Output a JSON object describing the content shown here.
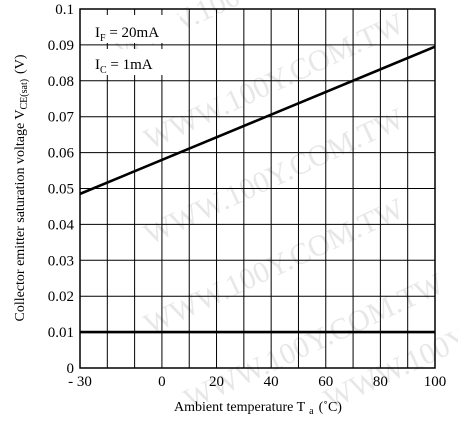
{
  "chart_data": {
    "type": "line",
    "x": [
      -30,
      100
    ],
    "series": [
      {
        "values": [
          0.0485,
          0.0895
        ]
      },
      {
        "values": [
          0.01,
          0.01
        ]
      }
    ],
    "xlim": [
      -30,
      100
    ],
    "ylim": [
      0,
      0.1
    ],
    "x_ticks": [
      -30,
      -20,
      -10,
      0,
      10,
      20,
      30,
      40,
      50,
      60,
      70,
      80,
      90,
      100
    ],
    "x_tick_labels": [
      "- 30",
      "",
      "",
      "0",
      "",
      "20",
      "",
      "40",
      "",
      "60",
      "",
      "80",
      "",
      "100"
    ],
    "y_ticks": [
      0,
      0.01,
      0.02,
      0.03,
      0.04,
      0.05,
      0.06,
      0.07,
      0.08,
      0.09,
      0.1
    ],
    "y_tick_labels": [
      "0",
      "0.01",
      "0.02",
      "0.03",
      "0.04",
      "0.05",
      "0.06",
      "0.07",
      "0.08",
      "0.09",
      "0.1"
    ],
    "grid": true,
    "xlabel": {
      "main": "Ambient temperature T",
      "sub": "a",
      "unit": "(˚C)"
    },
    "ylabel": {
      "main": "Collector emitter saturation voltage V",
      "sub": "CE(sat)",
      "unit": "(V)"
    },
    "annotations": [
      {
        "main": "I",
        "sub": "F",
        "rest": " = 20mA"
      },
      {
        "main": "I",
        "sub": "C",
        "rest": " = 1mA"
      }
    ],
    "watermark": "WWW.100Y.COM.TW",
    "line_color": "#000000",
    "grid_color": "#000000"
  }
}
